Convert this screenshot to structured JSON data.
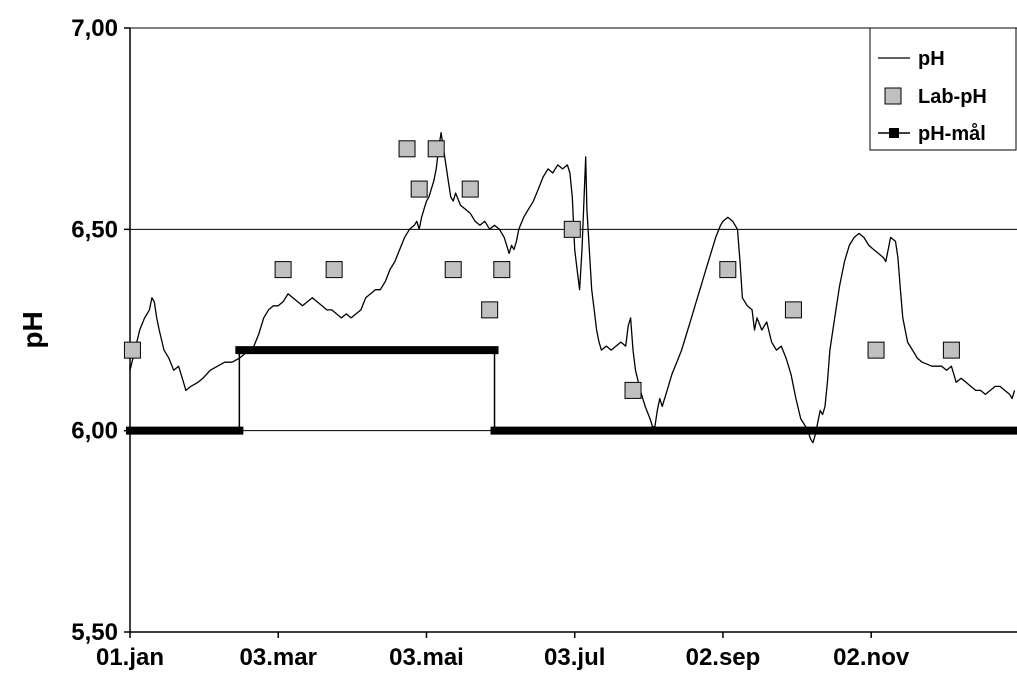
{
  "chart_data": {
    "type": "line",
    "title": "",
    "xlabel": "",
    "ylabel": "pH",
    "ylim": [
      5.5,
      7.0
    ],
    "xlim": [
      "01.jan",
      "31.des"
    ],
    "yticks": [
      "5,50",
      "6,00",
      "6,50",
      "7,00"
    ],
    "ytick_values": [
      5.5,
      6.0,
      6.5,
      7.0
    ],
    "xticks": [
      "01.jan",
      "03.mar",
      "03.mai",
      "03.jul",
      "02.sep",
      "02.nov"
    ],
    "xtick_days": [
      0,
      61,
      122,
      183,
      244,
      305
    ],
    "grid": "horizontal",
    "legend_position": "top-right",
    "legend": [
      "pH",
      "Lab-pH",
      "pH-mål"
    ],
    "series": [
      {
        "name": "pH",
        "style": "line",
        "color": "#000000",
        "points": [
          [
            0,
            6.15
          ],
          [
            2,
            6.2
          ],
          [
            4,
            6.25
          ],
          [
            6,
            6.28
          ],
          [
            8,
            6.3
          ],
          [
            9,
            6.33
          ],
          [
            10,
            6.32
          ],
          [
            11,
            6.28
          ],
          [
            12,
            6.25
          ],
          [
            14,
            6.2
          ],
          [
            16,
            6.18
          ],
          [
            18,
            6.15
          ],
          [
            20,
            6.16
          ],
          [
            22,
            6.12
          ],
          [
            23,
            6.1
          ],
          [
            25,
            6.11
          ],
          [
            28,
            6.12
          ],
          [
            30,
            6.13
          ],
          [
            33,
            6.15
          ],
          [
            36,
            6.16
          ],
          [
            39,
            6.17
          ],
          [
            42,
            6.17
          ],
          [
            45,
            6.18
          ],
          [
            47,
            6.19
          ],
          [
            49,
            6.2
          ],
          [
            51,
            6.21
          ],
          [
            53,
            6.24
          ],
          [
            55,
            6.28
          ],
          [
            57,
            6.3
          ],
          [
            59,
            6.31
          ],
          [
            61,
            6.31
          ],
          [
            63,
            6.32
          ],
          [
            65,
            6.34
          ],
          [
            67,
            6.33
          ],
          [
            69,
            6.32
          ],
          [
            71,
            6.31
          ],
          [
            73,
            6.32
          ],
          [
            75,
            6.33
          ],
          [
            77,
            6.32
          ],
          [
            79,
            6.31
          ],
          [
            81,
            6.3
          ],
          [
            83,
            6.3
          ],
          [
            85,
            6.29
          ],
          [
            87,
            6.28
          ],
          [
            89,
            6.29
          ],
          [
            91,
            6.28
          ],
          [
            93,
            6.29
          ],
          [
            95,
            6.3
          ],
          [
            97,
            6.33
          ],
          [
            99,
            6.34
          ],
          [
            101,
            6.35
          ],
          [
            103,
            6.35
          ],
          [
            105,
            6.37
          ],
          [
            107,
            6.4
          ],
          [
            109,
            6.42
          ],
          [
            111,
            6.45
          ],
          [
            113,
            6.48
          ],
          [
            115,
            6.5
          ],
          [
            117,
            6.51
          ],
          [
            118,
            6.52
          ],
          [
            119,
            6.5
          ],
          [
            120,
            6.53
          ],
          [
            121,
            6.55
          ],
          [
            122,
            6.57
          ],
          [
            123,
            6.58
          ],
          [
            124,
            6.6
          ],
          [
            125,
            6.62
          ],
          [
            126,
            6.65
          ],
          [
            127,
            6.7
          ],
          [
            128,
            6.74
          ],
          [
            129,
            6.7
          ],
          [
            130,
            6.66
          ],
          [
            131,
            6.62
          ],
          [
            132,
            6.58
          ],
          [
            133,
            6.57
          ],
          [
            134,
            6.59
          ],
          [
            136,
            6.56
          ],
          [
            138,
            6.55
          ],
          [
            140,
            6.54
          ],
          [
            142,
            6.52
          ],
          [
            144,
            6.51
          ],
          [
            146,
            6.52
          ],
          [
            148,
            6.5
          ],
          [
            150,
            6.51
          ],
          [
            152,
            6.5
          ],
          [
            154,
            6.48
          ],
          [
            155,
            6.46
          ],
          [
            156,
            6.44
          ],
          [
            157,
            6.46
          ],
          [
            158,
            6.45
          ],
          [
            159,
            6.47
          ],
          [
            160,
            6.5
          ],
          [
            162,
            6.53
          ],
          [
            164,
            6.55
          ],
          [
            166,
            6.57
          ],
          [
            168,
            6.6
          ],
          [
            170,
            6.63
          ],
          [
            172,
            6.65
          ],
          [
            174,
            6.64
          ],
          [
            176,
            6.66
          ],
          [
            178,
            6.65
          ],
          [
            180,
            6.66
          ],
          [
            181,
            6.64
          ],
          [
            182,
            6.58
          ],
          [
            183,
            6.45
          ],
          [
            184,
            6.4
          ],
          [
            185,
            6.35
          ],
          [
            186,
            6.45
          ],
          [
            187,
            6.6
          ],
          [
            187.5,
            6.68
          ],
          [
            188,
            6.55
          ],
          [
            189,
            6.45
          ],
          [
            190,
            6.35
          ],
          [
            191,
            6.3
          ],
          [
            192,
            6.25
          ],
          [
            193,
            6.22
          ],
          [
            194,
            6.2
          ],
          [
            196,
            6.21
          ],
          [
            198,
            6.2
          ],
          [
            200,
            6.21
          ],
          [
            202,
            6.22
          ],
          [
            204,
            6.21
          ],
          [
            205,
            6.26
          ],
          [
            206,
            6.28
          ],
          [
            207,
            6.2
          ],
          [
            208,
            6.15
          ],
          [
            210,
            6.1
          ],
          [
            212,
            6.06
          ],
          [
            214,
            6.03
          ],
          [
            215,
            6.01
          ],
          [
            216,
            6.01
          ],
          [
            217,
            6.05
          ],
          [
            218,
            6.08
          ],
          [
            219,
            6.06
          ],
          [
            221,
            6.1
          ],
          [
            223,
            6.14
          ],
          [
            225,
            6.17
          ],
          [
            227,
            6.2
          ],
          [
            229,
            6.24
          ],
          [
            231,
            6.28
          ],
          [
            233,
            6.32
          ],
          [
            235,
            6.36
          ],
          [
            237,
            6.4
          ],
          [
            239,
            6.44
          ],
          [
            241,
            6.48
          ],
          [
            243,
            6.51
          ],
          [
            244,
            6.52
          ],
          [
            246,
            6.53
          ],
          [
            248,
            6.52
          ],
          [
            250,
            6.5
          ],
          [
            251,
            6.42
          ],
          [
            252,
            6.33
          ],
          [
            254,
            6.31
          ],
          [
            256,
            6.3
          ],
          [
            257,
            6.25
          ],
          [
            258,
            6.28
          ],
          [
            260,
            6.25
          ],
          [
            262,
            6.27
          ],
          [
            264,
            6.22
          ],
          [
            266,
            6.2
          ],
          [
            268,
            6.21
          ],
          [
            270,
            6.18
          ],
          [
            272,
            6.14
          ],
          [
            274,
            6.08
          ],
          [
            276,
            6.03
          ],
          [
            278,
            6.01
          ],
          [
            279,
            6.0
          ],
          [
            280,
            5.98
          ],
          [
            281,
            5.97
          ],
          [
            282,
            5.99
          ],
          [
            283,
            6.02
          ],
          [
            284,
            6.05
          ],
          [
            285,
            6.04
          ],
          [
            286,
            6.06
          ],
          [
            287,
            6.12
          ],
          [
            288,
            6.2
          ],
          [
            290,
            6.28
          ],
          [
            292,
            6.36
          ],
          [
            294,
            6.42
          ],
          [
            296,
            6.46
          ],
          [
            298,
            6.48
          ],
          [
            300,
            6.49
          ],
          [
            302,
            6.48
          ],
          [
            304,
            6.46
          ],
          [
            306,
            6.45
          ],
          [
            308,
            6.44
          ],
          [
            310,
            6.43
          ],
          [
            311,
            6.42
          ],
          [
            312,
            6.45
          ],
          [
            313,
            6.48
          ],
          [
            315,
            6.47
          ],
          [
            316,
            6.43
          ],
          [
            317,
            6.35
          ],
          [
            318,
            6.28
          ],
          [
            319,
            6.25
          ],
          [
            320,
            6.22
          ],
          [
            322,
            6.2
          ],
          [
            324,
            6.18
          ],
          [
            326,
            6.17
          ],
          [
            330,
            6.16
          ],
          [
            334,
            6.16
          ],
          [
            336,
            6.15
          ],
          [
            338,
            6.16
          ],
          [
            340,
            6.12
          ],
          [
            342,
            6.13
          ],
          [
            344,
            6.12
          ],
          [
            346,
            6.11
          ],
          [
            348,
            6.1
          ],
          [
            350,
            6.1
          ],
          [
            352,
            6.09
          ],
          [
            354,
            6.1
          ],
          [
            356,
            6.11
          ],
          [
            358,
            6.11
          ],
          [
            360,
            6.1
          ],
          [
            362,
            6.09
          ],
          [
            363,
            6.08
          ],
          [
            364,
            6.1
          ]
        ]
      },
      {
        "name": "Lab-pH",
        "style": "markers",
        "color": "#c0c0c0",
        "points": [
          [
            1,
            6.2
          ],
          [
            63,
            6.4
          ],
          [
            84,
            6.4
          ],
          [
            114,
            6.7
          ],
          [
            119,
            6.6
          ],
          [
            126,
            6.7
          ],
          [
            133,
            6.4
          ],
          [
            140,
            6.6
          ],
          [
            148,
            6.3
          ],
          [
            153,
            6.4
          ],
          [
            182,
            6.5
          ],
          [
            207,
            6.1
          ],
          [
            246,
            6.4
          ],
          [
            273,
            6.3
          ],
          [
            307,
            6.2
          ],
          [
            338,
            6.2
          ]
        ]
      },
      {
        "name": "pH-mål",
        "style": "step",
        "color": "#000000",
        "points": [
          [
            0,
            6.0
          ],
          [
            45,
            6.0
          ],
          [
            45,
            6.2
          ],
          [
            150,
            6.2
          ],
          [
            150,
            6.0
          ],
          [
            365,
            6.0
          ]
        ]
      }
    ]
  }
}
